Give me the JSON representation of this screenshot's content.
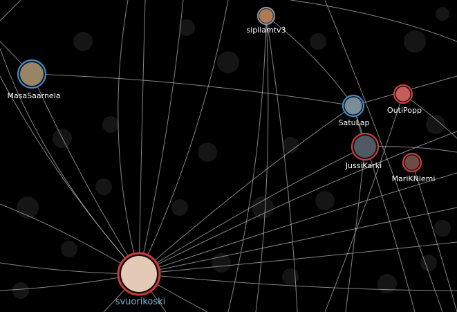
{
  "graph": {
    "nodes": [
      {
        "id": "sipilamtv3",
        "label": "sipilamtv3",
        "ring": "#8b95a3",
        "avatar": "#b07a52",
        "highlight": false
      },
      {
        "id": "masasaarnela",
        "label": "MasaSaarnela",
        "ring": "#3b8fcc",
        "avatar": "#9a8466",
        "highlight": false
      },
      {
        "id": "satulap",
        "label": "SatuLap",
        "ring": "#3b8fcc",
        "avatar": "#7a8c96",
        "highlight": false
      },
      {
        "id": "outipopp",
        "label": "OutiPopp",
        "ring": "#d23a3a",
        "avatar": "#c65d5d",
        "highlight": false
      },
      {
        "id": "jussikarki",
        "label": "JussiKarki",
        "ring": "#d23a3a",
        "avatar": "#4f5a66",
        "highlight": false
      },
      {
        "id": "mariknieml",
        "label": "MariKNiemi",
        "ring": "#d23a3a",
        "avatar": "#6e4b45",
        "highlight": false
      },
      {
        "id": "svuorikoski",
        "label": "svuorikoski",
        "ring": "#d23a3a",
        "avatar": "#e3c9b6",
        "highlight": true
      }
    ],
    "colors": {
      "background": "#000000",
      "edge": "#bdbdbd",
      "label": "#ffffff",
      "highlight_label": "#7fb6d9"
    }
  }
}
